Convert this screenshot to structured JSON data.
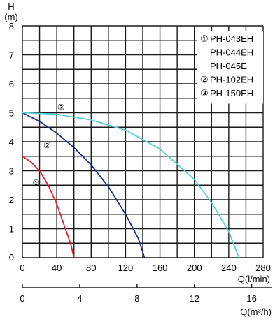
{
  "chart_data": {
    "type": "line",
    "ylabel_line1": "H",
    "ylabel_line2": "(m)",
    "xlabel": "Q(l/min)",
    "x2label": "Q(m³/h)",
    "xlim": [
      0,
      280
    ],
    "ylim": [
      0,
      8
    ],
    "x2lim": [
      0,
      16.8
    ],
    "x_grid_step": 20,
    "y_grid_step": 0.5,
    "x_ticks": [
      0,
      40,
      80,
      120,
      160,
      200,
      240,
      280
    ],
    "x_tick_labels": [
      "0",
      "40",
      "80",
      "120",
      "160",
      "200",
      "240",
      "280"
    ],
    "x2_ticks": [
      0,
      4,
      8,
      12,
      16
    ],
    "x2_tick_labels": [
      "0",
      "4",
      "8",
      "12",
      "16"
    ],
    "y_ticks": [
      1,
      2,
      3,
      4,
      5,
      6,
      7,
      8
    ],
    "y_tick_labels": [
      "1",
      "2",
      "3",
      "4",
      "5",
      "6",
      "7",
      "8"
    ],
    "origin_label": "0",
    "grid": true,
    "legend_placement": "top-right",
    "legend": [
      {
        "marker": "①",
        "text": "PH-043EH"
      },
      {
        "marker": "",
        "text": "PH-044EH"
      },
      {
        "marker": "",
        "text": "PH-045E"
      },
      {
        "marker": "②",
        "text": "PH-102EH"
      },
      {
        "marker": "③",
        "text": "PH-150EH"
      }
    ],
    "series": [
      {
        "marker": "①",
        "color": "#e8202a",
        "label_at": {
          "x": 16,
          "y": 2.6
        },
        "x": [
          0,
          10,
          20,
          30,
          40,
          50,
          56,
          60
        ],
        "y": [
          3.5,
          3.3,
          3.0,
          2.5,
          1.85,
          1.0,
          0.5,
          0.0
        ]
      },
      {
        "marker": "②",
        "color": "#1a2a8c",
        "label_at": {
          "x": 29,
          "y": 3.9
        },
        "x": [
          0,
          20,
          40,
          60,
          80,
          100,
          120,
          135,
          142
        ],
        "y": [
          5.0,
          4.7,
          4.3,
          3.8,
          3.2,
          2.45,
          1.5,
          0.65,
          0.0
        ]
      },
      {
        "marker": "③",
        "color": "#5ccfd0",
        "label_at": {
          "x": 45,
          "y": 5.2
        },
        "x": [
          0,
          40,
          80,
          120,
          160,
          200,
          220,
          240,
          252
        ],
        "y": [
          5.0,
          4.95,
          4.75,
          4.4,
          3.75,
          2.7,
          1.9,
          0.9,
          0.0
        ]
      }
    ]
  }
}
